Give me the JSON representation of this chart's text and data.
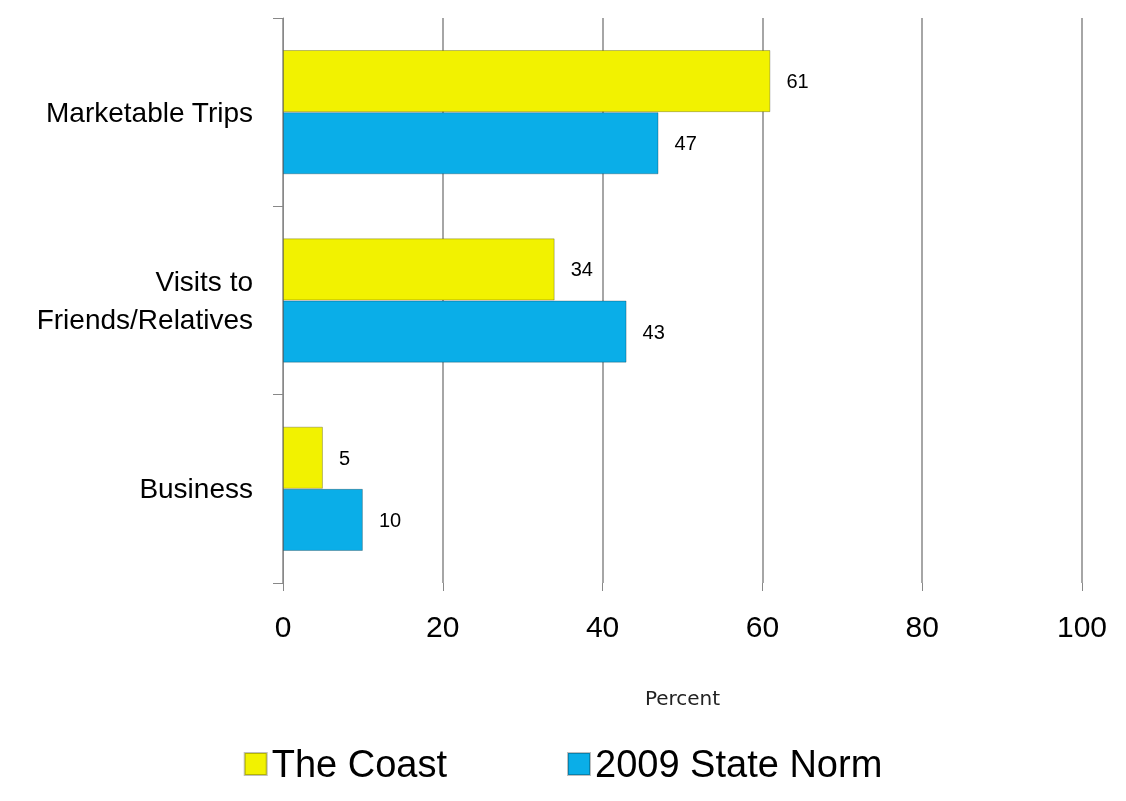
{
  "chart_data": {
    "type": "bar",
    "orientation": "horizontal",
    "xlabel": "Percent",
    "categories": [
      "Marketable Trips",
      "Visits to\nFriends/Relatives",
      "Business"
    ],
    "series": [
      {
        "name": "The Coast",
        "color": "#f2f200",
        "values": [
          61,
          34,
          5
        ]
      },
      {
        "name": "2009 State Norm",
        "color": "#0aaee8",
        "values": [
          47,
          43,
          10
        ]
      }
    ],
    "xlim": [
      0,
      100
    ],
    "xticks": [
      0,
      20,
      40,
      60,
      80,
      100
    ],
    "grid": "x",
    "legend": "bottom",
    "data_labels": true
  }
}
